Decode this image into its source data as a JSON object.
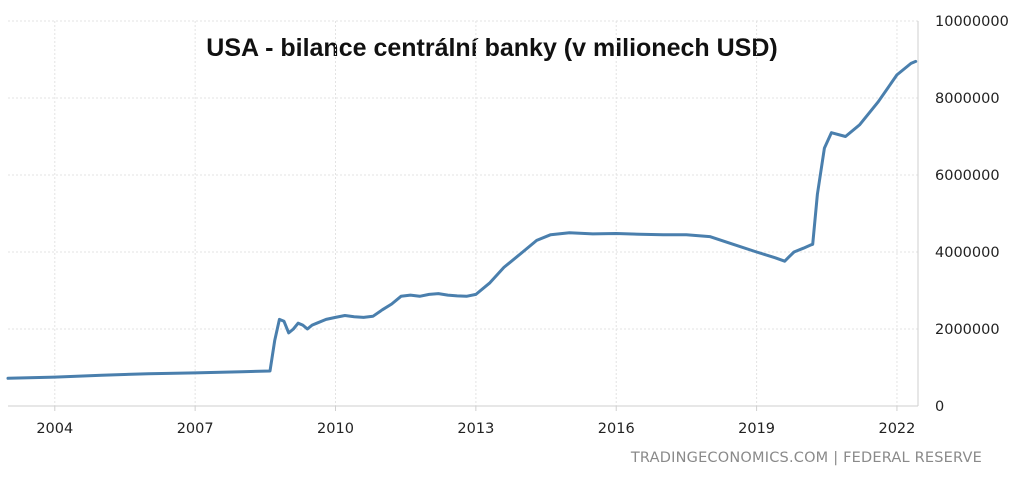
{
  "chart_data": {
    "type": "line",
    "title": "USA - bilance centrální banky (v milionech USD)",
    "xlabel": "",
    "ylabel": "",
    "source": "TRADINGECONOMICS.COM | FEDERAL RESERVE",
    "x_ticks": [
      "2004",
      "2007",
      "2010",
      "2013",
      "2016",
      "2019",
      "2022"
    ],
    "y_ticks": [
      "0",
      "2000000",
      "4000000",
      "6000000",
      "8000000",
      "10000000"
    ],
    "ylim": [
      0,
      10000000
    ],
    "xlim": [
      2003.0,
      2022.45
    ],
    "grid": true,
    "legend": "none",
    "line_color": "#4a7fad",
    "series": [
      {
        "x": [
          2003.0,
          2004.0,
          2005.0,
          2006.0,
          2007.0,
          2008.0,
          2008.6,
          2008.7,
          2008.8,
          2008.9,
          2009.0,
          2009.1,
          2009.2,
          2009.3,
          2009.4,
          2009.5,
          2009.6,
          2009.8,
          2010.0,
          2010.2,
          2010.4,
          2010.6,
          2010.8,
          2011.0,
          2011.2,
          2011.4,
          2011.6,
          2011.8,
          2012.0,
          2012.2,
          2012.4,
          2012.6,
          2012.8,
          2013.0,
          2013.3,
          2013.6,
          2014.0,
          2014.3,
          2014.6,
          2015.0,
          2015.5,
          2016.0,
          2016.5,
          2017.0,
          2017.5,
          2018.0,
          2018.5,
          2019.0,
          2019.4,
          2019.6,
          2019.7,
          2019.8,
          2020.0,
          2020.15,
          2020.2,
          2020.3,
          2020.45,
          2020.6,
          2020.9,
          2021.2,
          2021.6,
          2022.0,
          2022.3,
          2022.4
        ],
        "y": [
          720000,
          750000,
          800000,
          840000,
          860000,
          890000,
          910000,
          1700000,
          2250000,
          2200000,
          1900000,
          2000000,
          2150000,
          2100000,
          2000000,
          2100000,
          2150000,
          2250000,
          2300000,
          2350000,
          2320000,
          2300000,
          2330000,
          2500000,
          2650000,
          2850000,
          2880000,
          2850000,
          2900000,
          2920000,
          2880000,
          2860000,
          2850000,
          2900000,
          3200000,
          3600000,
          4000000,
          4300000,
          4450000,
          4500000,
          4470000,
          4480000,
          4460000,
          4450000,
          4450000,
          4400000,
          4200000,
          4000000,
          3850000,
          3760000,
          3880000,
          4000000,
          4100000,
          4180000,
          4200000,
          5500000,
          6700000,
          7100000,
          7000000,
          7300000,
          7900000,
          8600000,
          8900000,
          8950000
        ]
      }
    ]
  }
}
